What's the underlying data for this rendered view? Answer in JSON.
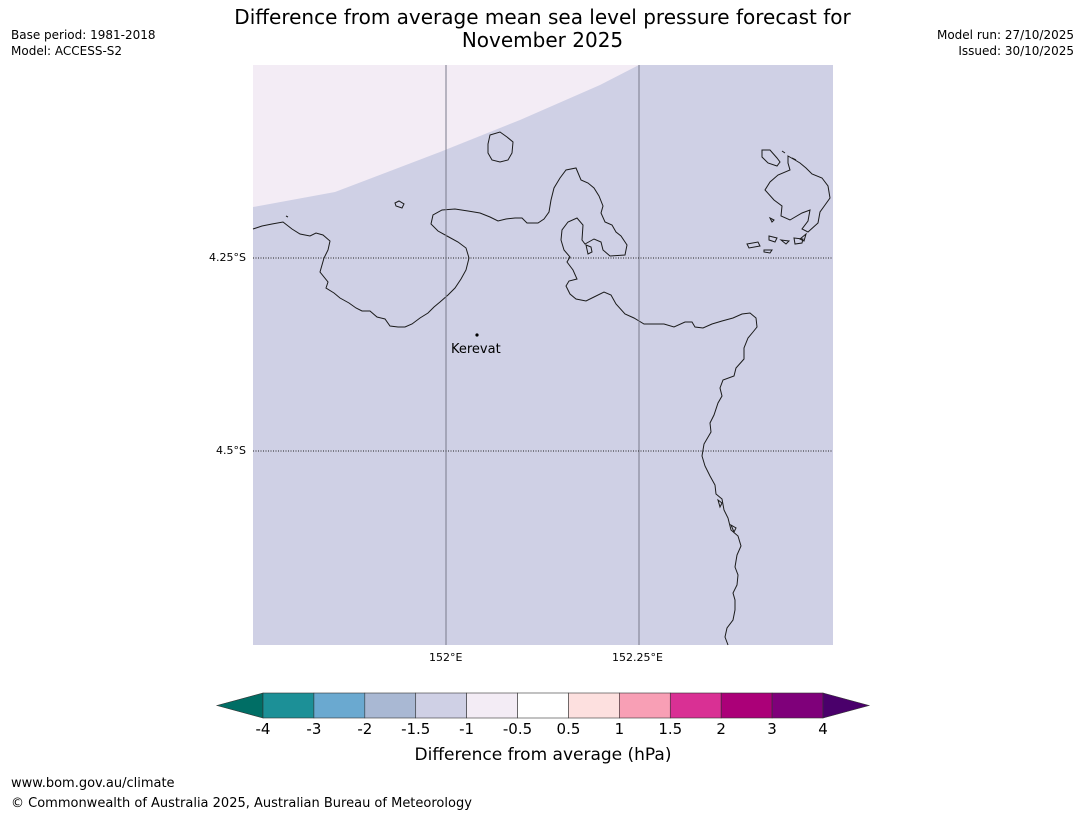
{
  "header": {
    "title_line1": "Difference from average mean sea level pressure forecast for",
    "title_line2": "November 2025",
    "base_period": "Base period: 1981-2018",
    "model": "Model: ACCESS-S2",
    "model_run": "Model run: 27/10/2025",
    "issued": "Issued: 30/10/2025"
  },
  "map": {
    "lon_ticks": [
      "152°E",
      "152.25°E"
    ],
    "lat_ticks": [
      "4.25°S",
      "4.5°S"
    ],
    "place_label": "Kerevat",
    "field_colors": {
      "dominant": "#cfd0e5",
      "upper_left": "#f3ecf5"
    }
  },
  "colorbar": {
    "title": "Difference from average (hPa)",
    "tick_labels": [
      "-4",
      "-3",
      "-2",
      "-1.5",
      "-1",
      "-0.5",
      "0.5",
      "1",
      "1.5",
      "2",
      "3",
      "4"
    ],
    "colors": [
      "#1c9097",
      "#6aa9d0",
      "#a9b8d3",
      "#cfd0e5",
      "#f3ecf5",
      "#ffffff",
      "#fde0df",
      "#f89fb5",
      "#d93094",
      "#ab0078",
      "#7f007a"
    ],
    "extend_low_color": "#006e65",
    "extend_high_color": "#4a006b"
  },
  "footer": {
    "url": "www.bom.gov.au/climate",
    "copyright": "© Commonwealth of Australia 2025, Australian Bureau of Meteorology"
  }
}
